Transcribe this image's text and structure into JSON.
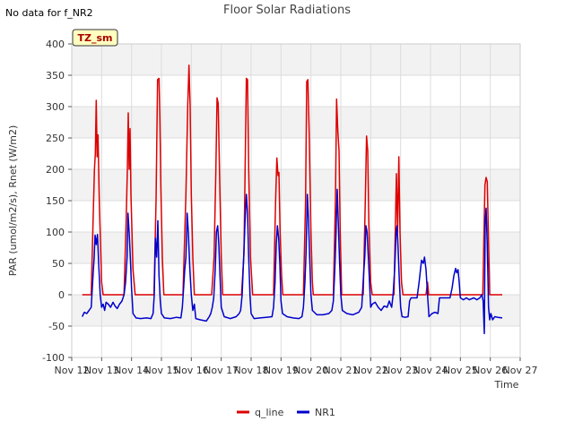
{
  "note": "No data for f_NR2",
  "chart_data": {
    "type": "line",
    "title": "Floor Solar Radiations",
    "xlabel": "Time",
    "ylabel": "PAR (umol/m2/s), Rnet (W/m2)",
    "xlim": [
      12,
      27
    ],
    "ylim": [
      -100,
      400
    ],
    "x_ticks": [
      12,
      13,
      14,
      15,
      16,
      17,
      18,
      19,
      20,
      21,
      22,
      23,
      24,
      25,
      26,
      27
    ],
    "x_tick_labels": [
      "Nov 12",
      "Nov 13",
      "Nov 14",
      "Nov 15",
      "Nov 16",
      "Nov 17",
      "Nov 18",
      "Nov 19",
      "Nov 20",
      "Nov 21",
      "Nov 22",
      "Nov 23",
      "Nov 24",
      "Nov 25",
      "Nov 26",
      "Nov 27"
    ],
    "y_ticks": [
      -100,
      -50,
      0,
      50,
      100,
      150,
      200,
      250,
      300,
      350,
      400
    ],
    "y_tick_labels": [
      "-100",
      "-50",
      "0",
      "50",
      "100",
      "150",
      "200",
      "250",
      "300",
      "350",
      "400"
    ],
    "grid": true,
    "legend_position": "bottom-center",
    "annotation_box": {
      "text": "TZ_sm",
      "fill": "#ffffc0",
      "text_color": "#aa0000"
    },
    "series": [
      {
        "name": "q_line",
        "color": "#dd0000",
        "points": [
          [
            12.35,
            0
          ],
          [
            12.65,
            0
          ],
          [
            12.72,
            130
          ],
          [
            12.76,
            200
          ],
          [
            12.79,
            225
          ],
          [
            12.82,
            310
          ],
          [
            12.85,
            220
          ],
          [
            12.88,
            255
          ],
          [
            12.92,
            150
          ],
          [
            12.96,
            85
          ],
          [
            13.0,
            20
          ],
          [
            13.05,
            0
          ],
          [
            13.75,
            0
          ],
          [
            13.82,
            120
          ],
          [
            13.86,
            200
          ],
          [
            13.89,
            290
          ],
          [
            13.92,
            200
          ],
          [
            13.95,
            265
          ],
          [
            13.98,
            160
          ],
          [
            14.05,
            40
          ],
          [
            14.12,
            0
          ],
          [
            14.75,
            0
          ],
          [
            14.82,
            150
          ],
          [
            14.87,
            343
          ],
          [
            14.92,
            345
          ],
          [
            14.95,
            280
          ],
          [
            14.98,
            175
          ],
          [
            15.03,
            60
          ],
          [
            15.08,
            0
          ],
          [
            15.72,
            0
          ],
          [
            15.82,
            160
          ],
          [
            15.88,
            300
          ],
          [
            15.92,
            366
          ],
          [
            15.96,
            300
          ],
          [
            16.0,
            160
          ],
          [
            16.05,
            60
          ],
          [
            16.1,
            0
          ],
          [
            16.68,
            0
          ],
          [
            16.76,
            60
          ],
          [
            16.82,
            200
          ],
          [
            16.86,
            314
          ],
          [
            16.9,
            305
          ],
          [
            16.94,
            200
          ],
          [
            17.0,
            60
          ],
          [
            17.05,
            0
          ],
          [
            17.68,
            0
          ],
          [
            17.76,
            65
          ],
          [
            17.8,
            200
          ],
          [
            17.84,
            345
          ],
          [
            17.88,
            343
          ],
          [
            17.92,
            200
          ],
          [
            17.98,
            60
          ],
          [
            18.05,
            0
          ],
          [
            18.75,
            0
          ],
          [
            18.82,
            150
          ],
          [
            18.86,
            218
          ],
          [
            18.9,
            190
          ],
          [
            18.93,
            195
          ],
          [
            18.97,
            100
          ],
          [
            19.02,
            30
          ],
          [
            19.06,
            0
          ],
          [
            19.75,
            0
          ],
          [
            19.82,
            150
          ],
          [
            19.86,
            340
          ],
          [
            19.9,
            343
          ],
          [
            19.94,
            260
          ],
          [
            20.0,
            100
          ],
          [
            20.05,
            20
          ],
          [
            20.08,
            0
          ],
          [
            20.75,
            0
          ],
          [
            20.82,
            150
          ],
          [
            20.86,
            312
          ],
          [
            20.9,
            260
          ],
          [
            20.94,
            230
          ],
          [
            20.98,
            100
          ],
          [
            21.03,
            0
          ],
          [
            21.75,
            0
          ],
          [
            21.82,
            150
          ],
          [
            21.86,
            253
          ],
          [
            21.9,
            230
          ],
          [
            21.94,
            110
          ],
          [
            22.0,
            20
          ],
          [
            22.05,
            0
          ],
          [
            22.78,
            0
          ],
          [
            22.86,
            193
          ],
          [
            22.9,
            100
          ],
          [
            22.94,
            220
          ],
          [
            22.98,
            100
          ],
          [
            23.03,
            20
          ],
          [
            23.08,
            0
          ],
          [
            23.85,
            0
          ],
          [
            23.9,
            20
          ],
          [
            23.94,
            0
          ],
          [
            25.75,
            0
          ],
          [
            25.82,
            175
          ],
          [
            25.86,
            187
          ],
          [
            25.9,
            180
          ],
          [
            25.94,
            85
          ],
          [
            25.98,
            0
          ],
          [
            26.4,
            0
          ]
        ]
      },
      {
        "name": "NR1",
        "color": "#0000cc",
        "points": [
          [
            12.35,
            -35
          ],
          [
            12.42,
            -28
          ],
          [
            12.5,
            -30
          ],
          [
            12.58,
            -25
          ],
          [
            12.65,
            -20
          ],
          [
            12.7,
            20
          ],
          [
            12.75,
            60
          ],
          [
            12.78,
            95
          ],
          [
            12.82,
            80
          ],
          [
            12.86,
            96
          ],
          [
            12.9,
            50
          ],
          [
            12.95,
            0
          ],
          [
            13.0,
            -20
          ],
          [
            13.05,
            -15
          ],
          [
            13.1,
            -25
          ],
          [
            13.15,
            -12
          ],
          [
            13.22,
            -15
          ],
          [
            13.3,
            -20
          ],
          [
            13.38,
            -12
          ],
          [
            13.45,
            -18
          ],
          [
            13.52,
            -22
          ],
          [
            13.6,
            -15
          ],
          [
            13.68,
            -10
          ],
          [
            13.75,
            0
          ],
          [
            13.8,
            20
          ],
          [
            13.85,
            60
          ],
          [
            13.88,
            130
          ],
          [
            13.92,
            100
          ],
          [
            13.96,
            60
          ],
          [
            14.0,
            10
          ],
          [
            14.05,
            -30
          ],
          [
            14.15,
            -37
          ],
          [
            14.3,
            -38
          ],
          [
            14.5,
            -37
          ],
          [
            14.65,
            -38
          ],
          [
            14.72,
            -30
          ],
          [
            14.76,
            0
          ],
          [
            14.8,
            90
          ],
          [
            14.84,
            60
          ],
          [
            14.88,
            118
          ],
          [
            14.92,
            30
          ],
          [
            14.96,
            -10
          ],
          [
            15.0,
            -30
          ],
          [
            15.1,
            -37
          ],
          [
            15.3,
            -38
          ],
          [
            15.5,
            -36
          ],
          [
            15.65,
            -37
          ],
          [
            15.7,
            -20
          ],
          [
            15.74,
            10
          ],
          [
            15.78,
            40
          ],
          [
            15.82,
            60
          ],
          [
            15.86,
            130
          ],
          [
            15.9,
            100
          ],
          [
            15.95,
            40
          ],
          [
            16.0,
            0
          ],
          [
            16.05,
            -25
          ],
          [
            16.1,
            -15
          ],
          [
            16.15,
            -38
          ],
          [
            16.3,
            -40
          ],
          [
            16.5,
            -42
          ],
          [
            16.6,
            -35
          ],
          [
            16.65,
            -30
          ],
          [
            16.7,
            -20
          ],
          [
            16.75,
            -5
          ],
          [
            16.8,
            40
          ],
          [
            16.84,
            100
          ],
          [
            16.88,
            110
          ],
          [
            16.92,
            80
          ],
          [
            16.96,
            30
          ],
          [
            17.0,
            -20
          ],
          [
            17.1,
            -35
          ],
          [
            17.3,
            -38
          ],
          [
            17.5,
            -35
          ],
          [
            17.6,
            -30
          ],
          [
            17.65,
            -25
          ],
          [
            17.7,
            0
          ],
          [
            17.75,
            60
          ],
          [
            17.8,
            120
          ],
          [
            17.84,
            160
          ],
          [
            17.88,
            130
          ],
          [
            17.92,
            60
          ],
          [
            17.96,
            0
          ],
          [
            18.0,
            -30
          ],
          [
            18.1,
            -38
          ],
          [
            18.3,
            -37
          ],
          [
            18.5,
            -36
          ],
          [
            18.7,
            -35
          ],
          [
            18.75,
            -20
          ],
          [
            18.8,
            20
          ],
          [
            18.84,
            80
          ],
          [
            18.88,
            110
          ],
          [
            18.92,
            90
          ],
          [
            18.96,
            50
          ],
          [
            19.0,
            -10
          ],
          [
            19.05,
            -30
          ],
          [
            19.2,
            -35
          ],
          [
            19.4,
            -37
          ],
          [
            19.6,
            -38
          ],
          [
            19.7,
            -35
          ],
          [
            19.75,
            -20
          ],
          [
            19.8,
            20
          ],
          [
            19.84,
            70
          ],
          [
            19.88,
            160
          ],
          [
            19.92,
            120
          ],
          [
            19.96,
            60
          ],
          [
            20.0,
            0
          ],
          [
            20.05,
            -25
          ],
          [
            20.2,
            -32
          ],
          [
            20.4,
            -32
          ],
          [
            20.6,
            -30
          ],
          [
            20.7,
            -25
          ],
          [
            20.75,
            -10
          ],
          [
            20.8,
            40
          ],
          [
            20.84,
            100
          ],
          [
            20.88,
            168
          ],
          [
            20.92,
            110
          ],
          [
            20.96,
            50
          ],
          [
            21.0,
            0
          ],
          [
            21.05,
            -25
          ],
          [
            21.2,
            -30
          ],
          [
            21.4,
            -32
          ],
          [
            21.6,
            -28
          ],
          [
            21.7,
            -20
          ],
          [
            21.76,
            30
          ],
          [
            21.8,
            60
          ],
          [
            21.84,
            110
          ],
          [
            21.88,
            100
          ],
          [
            21.92,
            60
          ],
          [
            21.96,
            20
          ],
          [
            22.0,
            -20
          ],
          [
            22.05,
            -15
          ],
          [
            22.15,
            -12
          ],
          [
            22.25,
            -20
          ],
          [
            22.35,
            -25
          ],
          [
            22.45,
            -18
          ],
          [
            22.55,
            -20
          ],
          [
            22.62,
            -10
          ],
          [
            22.7,
            -20
          ],
          [
            22.75,
            0
          ],
          [
            22.8,
            40
          ],
          [
            22.85,
            100
          ],
          [
            22.88,
            110
          ],
          [
            22.92,
            70
          ],
          [
            22.96,
            20
          ],
          [
            23.0,
            -20
          ],
          [
            23.05,
            -35
          ],
          [
            23.15,
            -36
          ],
          [
            23.25,
            -35
          ],
          [
            23.3,
            -10
          ],
          [
            23.35,
            -5
          ],
          [
            23.45,
            -5
          ],
          [
            23.55,
            -5
          ],
          [
            23.62,
            20
          ],
          [
            23.7,
            55
          ],
          [
            23.76,
            50
          ],
          [
            23.8,
            60
          ],
          [
            23.85,
            40
          ],
          [
            23.9,
            0
          ],
          [
            23.95,
            -35
          ],
          [
            24.05,
            -30
          ],
          [
            24.15,
            -28
          ],
          [
            24.25,
            -30
          ],
          [
            24.3,
            -5
          ],
          [
            24.4,
            -5
          ],
          [
            24.55,
            -5
          ],
          [
            24.65,
            -5
          ],
          [
            24.72,
            10
          ],
          [
            24.78,
            30
          ],
          [
            24.84,
            42
          ],
          [
            24.88,
            35
          ],
          [
            24.92,
            40
          ],
          [
            24.96,
            20
          ],
          [
            25.0,
            -5
          ],
          [
            25.1,
            -8
          ],
          [
            25.2,
            -5
          ],
          [
            25.3,
            -8
          ],
          [
            25.45,
            -5
          ],
          [
            25.55,
            -8
          ],
          [
            25.65,
            -5
          ],
          [
            25.72,
            0
          ],
          [
            25.76,
            -10
          ],
          [
            25.8,
            -62
          ],
          [
            25.83,
            120
          ],
          [
            25.86,
            138
          ],
          [
            25.9,
            80
          ],
          [
            25.94,
            -20
          ],
          [
            25.98,
            -40
          ],
          [
            26.02,
            -30
          ],
          [
            26.08,
            -40
          ],
          [
            26.15,
            -35
          ],
          [
            26.25,
            -36
          ],
          [
            26.4,
            -37
          ]
        ]
      }
    ]
  }
}
